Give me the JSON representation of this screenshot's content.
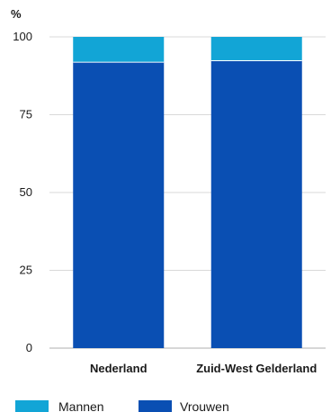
{
  "chart_data": {
    "type": "bar",
    "stacked": true,
    "unit_label": "%",
    "categories": [
      "Nederland",
      "Zuid-West Gelderland"
    ],
    "series": [
      {
        "name": "Vrouwen",
        "values": [
          92,
          92.5
        ],
        "color": "#0a4fb3"
      },
      {
        "name": "Mannen",
        "values": [
          8,
          7.5
        ],
        "color": "#12a5d6"
      }
    ],
    "ylim": [
      0,
      100
    ],
    "yticks": [
      0,
      25,
      50,
      75,
      100
    ],
    "grid": true,
    "legend": {
      "placement": "bottom-left",
      "order": [
        "Mannen",
        "Vrouwen"
      ]
    }
  }
}
